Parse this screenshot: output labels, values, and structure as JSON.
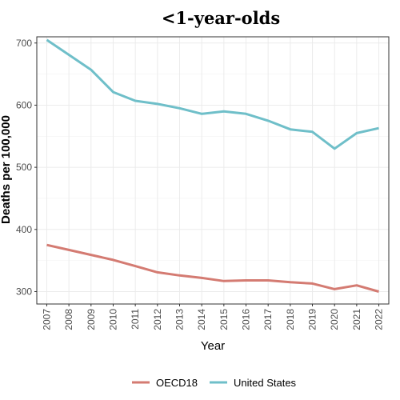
{
  "chart_data": {
    "type": "line",
    "title": "<1-year-olds",
    "xlabel": "Year",
    "ylabel": "Deaths per 100,000",
    "x": [
      2007,
      2008,
      2009,
      2010,
      2011,
      2012,
      2013,
      2014,
      2015,
      2016,
      2017,
      2018,
      2019,
      2020,
      2021,
      2022
    ],
    "x_tick_labels": [
      "2007",
      "2008",
      "2009",
      "2010",
      "2011",
      "2012",
      "2013",
      "2014",
      "2015",
      "2016",
      "2017",
      "2018",
      "2019",
      "2020",
      "2021",
      "2022"
    ],
    "ylim": [
      280,
      710
    ],
    "y_ticks": [
      300,
      400,
      500,
      600,
      700
    ],
    "y_tick_labels": [
      "300",
      "400",
      "500",
      "600",
      "700"
    ],
    "grid": true,
    "legend_position": "bottom",
    "series": [
      {
        "name": "OECD18",
        "color": "#d47b72",
        "values": [
          375,
          367,
          359,
          351,
          341,
          331,
          326,
          322,
          317,
          318,
          318,
          315,
          313,
          304,
          310,
          300
        ]
      },
      {
        "name": "United States",
        "color": "#6fbfc9",
        "values": [
          705,
          681,
          657,
          621,
          607,
          602,
          595,
          586,
          590,
          586,
          575,
          561,
          557,
          530,
          555,
          563
        ]
      }
    ]
  }
}
